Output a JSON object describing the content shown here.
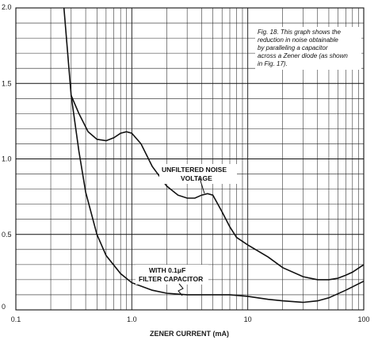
{
  "chart_data": {
    "type": "line",
    "x_scale": "log",
    "xlim": [
      0.1,
      100
    ],
    "ylim": [
      0,
      2.0
    ],
    "grid": true,
    "xlabel": "ZENER CURRENT (mA)",
    "ylabel": "",
    "x_ticks": [
      "0.1",
      "1.0",
      "10",
      "100"
    ],
    "y_ticks": [
      "0",
      "0.5",
      "1.0",
      "1.5",
      "2.0"
    ],
    "caption": [
      "Fig. 18. This graph shows the",
      "reduction in noise obtainable",
      "by paralleling a capacitor",
      "across a Zener diode (as shown",
      "in Fig. 17)."
    ],
    "series": [
      {
        "annotation": [
          "UNFILTERED NOISE",
          "VOLTAGE"
        ],
        "x": [
          0.26,
          0.3,
          0.35,
          0.42,
          0.5,
          0.6,
          0.7,
          0.8,
          0.9,
          1.0,
          1.2,
          1.5,
          2.0,
          2.5,
          3.0,
          3.5,
          4.0,
          4.5,
          5.0,
          6.0,
          7.0,
          8.0,
          10,
          15,
          20,
          30,
          40,
          50,
          60,
          70,
          80,
          100
        ],
        "y": [
          2.0,
          1.42,
          1.3,
          1.18,
          1.13,
          1.12,
          1.14,
          1.17,
          1.18,
          1.17,
          1.1,
          0.95,
          0.82,
          0.76,
          0.74,
          0.74,
          0.76,
          0.77,
          0.76,
          0.65,
          0.55,
          0.48,
          0.43,
          0.35,
          0.28,
          0.22,
          0.2,
          0.2,
          0.21,
          0.23,
          0.25,
          0.3
        ]
      },
      {
        "annotation": [
          "WITH 0.1μF",
          "FILTER CAPACITOR"
        ],
        "x": [
          0.3,
          0.35,
          0.4,
          0.5,
          0.6,
          0.8,
          1.0,
          1.5,
          2.0,
          3.0,
          5.0,
          7.0,
          10,
          15,
          20,
          30,
          40,
          50,
          70,
          100
        ],
        "y": [
          1.42,
          1.05,
          0.78,
          0.5,
          0.36,
          0.24,
          0.18,
          0.13,
          0.11,
          0.1,
          0.1,
          0.1,
          0.09,
          0.07,
          0.06,
          0.05,
          0.06,
          0.08,
          0.13,
          0.19
        ]
      }
    ]
  }
}
